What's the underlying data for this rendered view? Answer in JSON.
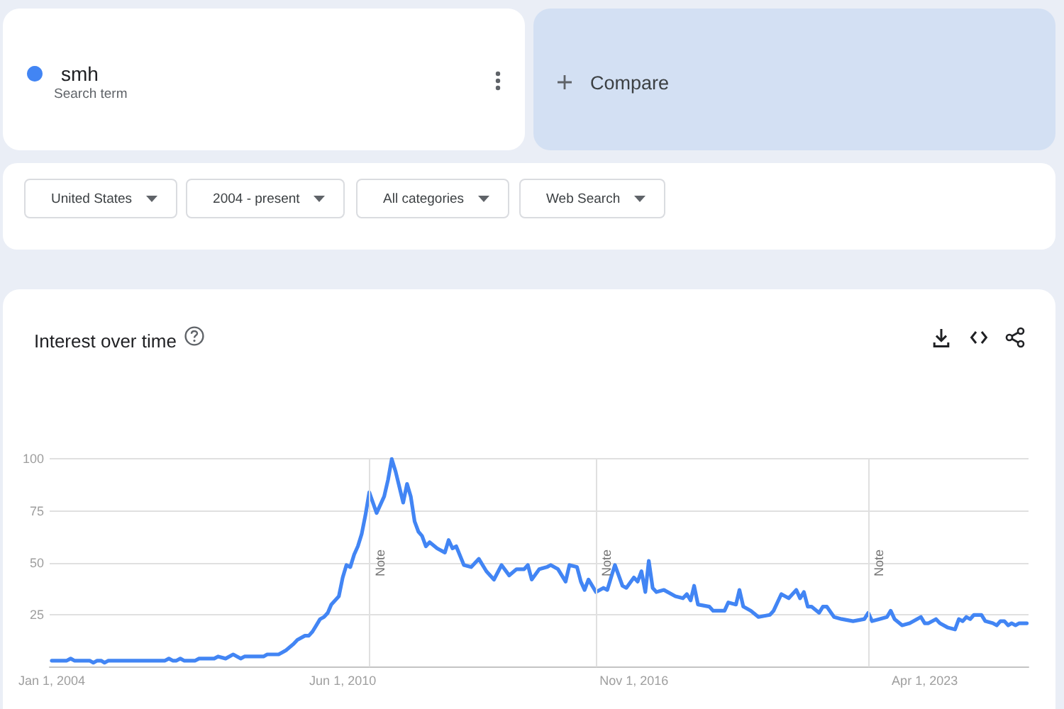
{
  "chart_data": {
    "type": "line",
    "title": "Interest over time",
    "annotations": [
      "Search term",
      "Compare",
      "United States",
      "2004 - present",
      "All categories",
      "Web Search"
    ],
    "x": [
      "2004-01",
      "2004-05",
      "2004-06",
      "2004-07",
      "2004-11",
      "2004-12",
      "2005-01",
      "2005-02",
      "2005-03",
      "2005-04",
      "2006-07",
      "2006-08",
      "2006-09",
      "2006-10",
      "2006-11",
      "2006-12",
      "2007-03",
      "2007-04",
      "2007-08",
      "2007-09",
      "2007-11",
      "2008-01",
      "2008-02",
      "2008-03",
      "2008-04",
      "2008-09",
      "2008-10",
      "2009-01",
      "2009-02",
      "2009-03",
      "2009-05",
      "2009-06",
      "2009-08",
      "2009-09",
      "2009-10",
      "2009-11",
      "2009-12",
      "2010-01",
      "2010-02",
      "2010-03",
      "2010-05",
      "2010-06",
      "2010-07",
      "2010-08",
      "2010-09",
      "2010-10",
      "2010-11",
      "2010-12",
      "2011-01",
      "2011-03",
      "2011-05",
      "2011-06",
      "2011-07",
      "2011-08",
      "2011-10",
      "2011-11",
      "2011-12",
      "2012-01",
      "2012-02",
      "2012-03",
      "2012-04",
      "2012-05",
      "2012-07",
      "2012-09",
      "2012-10",
      "2012-11",
      "2012-12",
      "2013-02",
      "2013-04",
      "2013-06",
      "2013-08",
      "2013-10",
      "2013-12",
      "2014-02",
      "2014-04",
      "2014-06",
      "2014-07",
      "2014-08",
      "2014-10",
      "2014-12",
      "2015-01",
      "2015-03",
      "2015-05",
      "2015-06",
      "2015-08",
      "2015-09",
      "2015-10",
      "2015-11",
      "2016-01",
      "2016-03",
      "2016-04",
      "2016-05",
      "2016-06",
      "2016-08",
      "2016-09",
      "2016-11",
      "2016-12",
      "2017-01",
      "2017-02",
      "2017-03",
      "2017-04",
      "2017-05",
      "2017-07",
      "2017-10",
      "2017-12",
      "2018-01",
      "2018-02",
      "2018-03",
      "2018-04",
      "2018-07",
      "2018-08",
      "2018-11",
      "2018-12",
      "2019-02",
      "2019-03",
      "2019-04",
      "2019-06",
      "2019-08",
      "2019-11",
      "2019-12",
      "2020-02",
      "2020-04",
      "2020-06",
      "2020-07",
      "2020-08",
      "2020-09",
      "2020-10",
      "2020-12",
      "2021-01",
      "2021-02",
      "2021-04",
      "2021-06",
      "2021-09",
      "2021-12",
      "2022-01",
      "2022-02",
      "2022-04",
      "2022-06",
      "2022-07",
      "2022-08",
      "2022-10",
      "2022-12",
      "2023-03",
      "2023-04",
      "2023-05",
      "2023-07",
      "2023-08",
      "2023-10",
      "2023-12",
      "2024-01",
      "2024-02",
      "2024-03",
      "2024-04",
      "2024-05",
      "2024-07",
      "2024-08",
      "2024-10",
      "2024-11",
      "2024-12",
      "2025-01",
      "2025-02",
      "2025-03",
      "2025-04",
      "2025-05",
      "2025-07"
    ],
    "series": [
      {
        "name": "smh",
        "color": "#4285f4",
        "values": [
          3,
          3,
          4,
          3,
          3,
          2,
          3,
          3,
          2,
          3,
          3,
          4,
          3,
          3,
          4,
          3,
          3,
          4,
          4,
          5,
          4,
          6,
          5,
          4,
          5,
          5,
          6,
          6,
          7,
          8,
          11,
          13,
          15,
          15,
          17,
          20,
          23,
          24,
          26,
          30,
          34,
          43,
          49,
          48,
          54,
          58,
          64,
          73,
          84,
          74,
          82,
          90,
          100,
          94,
          79,
          88,
          82,
          70,
          65,
          63,
          58,
          60,
          57,
          55,
          61,
          57,
          58,
          49,
          48,
          52,
          46,
          42,
          49,
          44,
          47,
          47,
          49,
          42,
          47,
          48,
          49,
          47,
          41,
          49,
          48,
          41,
          37,
          42,
          36,
          38,
          37,
          43,
          49,
          39,
          38,
          43,
          41,
          46,
          36,
          51,
          38,
          36,
          37,
          34,
          33,
          35,
          32,
          39,
          30,
          29,
          27,
          27,
          31,
          30,
          37,
          29,
          27,
          24,
          25,
          27,
          35,
          33,
          37,
          33,
          36,
          29,
          29,
          26,
          29,
          29,
          24,
          23,
          22,
          23,
          26,
          22,
          23,
          24,
          27,
          23,
          20,
          21,
          24,
          21,
          21,
          23,
          21,
          19,
          18,
          23,
          22,
          24,
          23,
          25,
          25,
          22,
          21,
          20,
          22,
          22,
          20,
          21,
          20,
          21,
          21
        ]
      }
    ],
    "xlim": [
      "2003-12-15",
      "2025-07-15"
    ],
    "xticks": [
      {
        "value": "2004-01-01",
        "label": "Jan 1, 2004"
      },
      {
        "value": "2010-06-01",
        "label": "Jun 1, 2010"
      },
      {
        "value": "2016-11-01",
        "label": "Nov 1, 2016"
      },
      {
        "value": "2023-04-01",
        "label": "Apr 1, 2023"
      }
    ],
    "ylim": [
      0,
      100
    ],
    "yticks": [
      25,
      50,
      75,
      100
    ],
    "ref_lines": [
      {
        "axis": "x",
        "value": "2011-01-01",
        "label": "Note"
      },
      {
        "axis": "x",
        "value": "2016-01-01",
        "label": "Note"
      },
      {
        "axis": "x",
        "value": "2022-01-01",
        "label": "Note"
      }
    ],
    "grid": "y",
    "legend": "top left",
    "marker": "none",
    "line_style": "solid"
  }
}
